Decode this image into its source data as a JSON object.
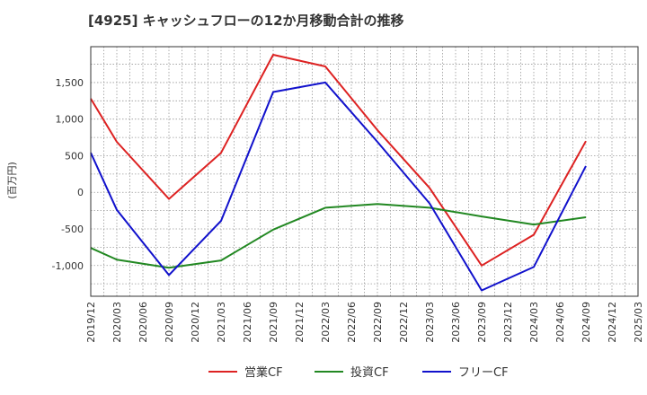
{
  "chart_data": {
    "type": "line",
    "title": "[4925]  キャッシュフローの12か月移動合計の推移",
    "xlabel": "",
    "ylabel": "(百万円)",
    "ylim": [
      -1420,
      1990
    ],
    "yticks": [
      1500,
      1000,
      500,
      0,
      -500,
      -1000
    ],
    "ytick_labels": [
      "1,500",
      "1,000",
      "500",
      "0",
      "-500",
      "-1,000"
    ],
    "x_tick_labels": [
      "2019/12",
      "2020/03",
      "2020/06",
      "2020/09",
      "2020/12",
      "2021/03",
      "2021/06",
      "2021/09",
      "2021/12",
      "2022/03",
      "2022/06",
      "2022/09",
      "2022/12",
      "2023/03",
      "2023/06",
      "2023/09",
      "2023/12",
      "2024/03",
      "2024/06",
      "2024/09",
      "2024/12",
      "2025/03"
    ],
    "grid": true,
    "legend": "bottom",
    "series": [
      {
        "name": "営業CF",
        "color": "#dd2222",
        "points": [
          [
            "2019/12",
            1280
          ],
          [
            "2020/03",
            690
          ],
          [
            "2020/09",
            -90
          ],
          [
            "2021/03",
            540
          ],
          [
            "2021/09",
            1880
          ],
          [
            "2022/03",
            1720
          ],
          [
            "2022/09",
            850
          ],
          [
            "2023/03",
            60
          ],
          [
            "2023/09",
            -1000
          ],
          [
            "2024/03",
            -580
          ],
          [
            "2024/09",
            700
          ]
        ]
      },
      {
        "name": "投資CF",
        "color": "#228822",
        "points": [
          [
            "2019/12",
            -760
          ],
          [
            "2020/03",
            -920
          ],
          [
            "2020/09",
            -1030
          ],
          [
            "2021/03",
            -930
          ],
          [
            "2021/09",
            -510
          ],
          [
            "2022/03",
            -210
          ],
          [
            "2022/09",
            -160
          ],
          [
            "2023/03",
            -210
          ],
          [
            "2023/09",
            -330
          ],
          [
            "2024/03",
            -440
          ],
          [
            "2024/09",
            -340
          ]
        ]
      },
      {
        "name": "フリーCF",
        "color": "#1111cc",
        "points": [
          [
            "2019/12",
            540
          ],
          [
            "2020/03",
            -240
          ],
          [
            "2020/09",
            -1130
          ],
          [
            "2021/03",
            -390
          ],
          [
            "2021/09",
            1370
          ],
          [
            "2022/03",
            1500
          ],
          [
            "2022/09",
            690
          ],
          [
            "2023/03",
            -150
          ],
          [
            "2023/09",
            -1340
          ],
          [
            "2024/03",
            -1020
          ],
          [
            "2024/09",
            360
          ]
        ]
      }
    ]
  }
}
